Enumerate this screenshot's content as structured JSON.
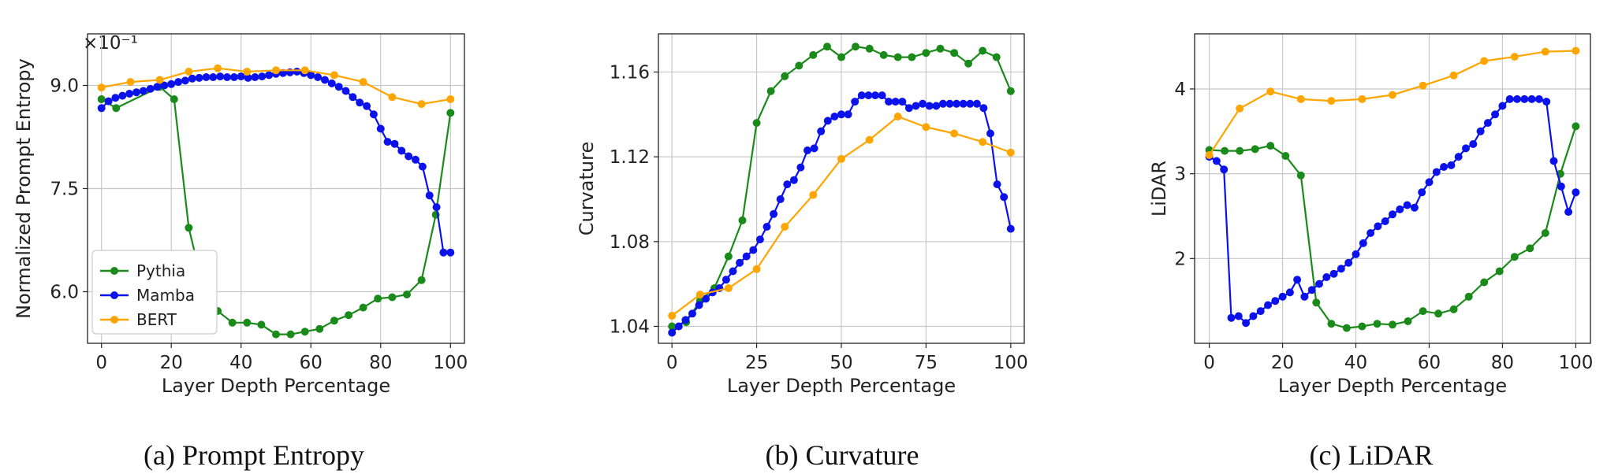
{
  "colors": {
    "Pythia": "#1a8a1a",
    "Mamba": "#0b12ea",
    "BERT": "#ffa500"
  },
  "chart_data": [
    {
      "type": "line",
      "caption": "(a) Prompt Entropy",
      "xlabel": "Layer Depth Percentage",
      "ylabel": "Normalized Prompt Entropy",
      "offset_text": "×10⁻¹",
      "xlim": [
        -4,
        104
      ],
      "ylim": [
        5.25,
        9.75
      ],
      "xticks": [
        0,
        20,
        40,
        60,
        80,
        100
      ],
      "xtick_labels": [
        "0",
        "20",
        "40",
        "60",
        "80",
        "100"
      ],
      "yticks": [
        6.0,
        7.5,
        9.0
      ],
      "ytick_labels": [
        "6.0",
        "7.5",
        "9.0"
      ],
      "legend": "lower-left",
      "series": [
        {
          "name": "Pythia",
          "x": [
            0,
            4.2,
            16.7,
            20.8,
            25,
            29.2,
            33.3,
            37.5,
            41.7,
            45.8,
            50,
            54.2,
            58.3,
            62.5,
            66.7,
            70.8,
            75,
            79.2,
            83.3,
            87.5,
            91.7,
            95.8,
            100
          ],
          "y": [
            8.8,
            8.67,
            8.98,
            8.8,
            6.93,
            6.05,
            5.72,
            5.55,
            5.55,
            5.52,
            5.38,
            5.38,
            5.42,
            5.46,
            5.58,
            5.66,
            5.77,
            5.9,
            5.92,
            5.96,
            6.17,
            7.12,
            8.6
          ]
        },
        {
          "name": "Mamba",
          "x": [
            0,
            2,
            4,
            6,
            8,
            10,
            12,
            14,
            16,
            18,
            20,
            22,
            24,
            26,
            28,
            30,
            32,
            34,
            36,
            38,
            40,
            42,
            44,
            46,
            48,
            50,
            52,
            54,
            56,
            58,
            60,
            62,
            64,
            66,
            68,
            70,
            72,
            74,
            76,
            78,
            80,
            82,
            84,
            86,
            88,
            90,
            92,
            94,
            96,
            98,
            100
          ],
          "y": [
            8.67,
            8.77,
            8.82,
            8.85,
            8.88,
            8.9,
            8.92,
            8.95,
            8.98,
            9.0,
            9.02,
            9.05,
            9.07,
            9.1,
            9.11,
            9.12,
            9.12,
            9.13,
            9.12,
            9.12,
            9.13,
            9.11,
            9.12,
            9.13,
            9.15,
            9.17,
            9.18,
            9.19,
            9.2,
            9.18,
            9.15,
            9.12,
            9.08,
            9.03,
            8.98,
            8.92,
            8.83,
            8.75,
            8.7,
            8.58,
            8.37,
            8.18,
            8.15,
            8.05,
            7.97,
            7.92,
            7.82,
            7.4,
            7.23,
            6.57,
            6.57
          ]
        },
        {
          "name": "BERT",
          "x": [
            0,
            8.3,
            16.7,
            25,
            33.3,
            41.7,
            50,
            58.3,
            66.7,
            75,
            83.3,
            91.7,
            100
          ],
          "y": [
            8.97,
            9.05,
            9.08,
            9.2,
            9.25,
            9.2,
            9.22,
            9.22,
            9.15,
            9.05,
            8.83,
            8.73,
            8.8
          ]
        }
      ]
    },
    {
      "type": "line",
      "caption": "(b) Curvature",
      "xlabel": "Layer Depth Percentage",
      "ylabel": "Curvature",
      "xlim": [
        -4,
        104
      ],
      "ylim": [
        1.032,
        1.178
      ],
      "xticks": [
        0,
        25,
        50,
        75,
        100
      ],
      "xtick_labels": [
        "0",
        "25",
        "50",
        "75",
        "100"
      ],
      "yticks": [
        1.04,
        1.08,
        1.12,
        1.16
      ],
      "ytick_labels": [
        "1.04",
        "1.08",
        "1.12",
        "1.16"
      ],
      "series": [
        {
          "name": "Pythia",
          "x": [
            0,
            4.2,
            8.3,
            12.5,
            16.7,
            20.8,
            25,
            29.2,
            33.3,
            37.5,
            41.7,
            45.8,
            50,
            54.2,
            58.3,
            62.5,
            66.7,
            70.8,
            75,
            79.2,
            83.3,
            87.5,
            91.7,
            95.8,
            100
          ],
          "y": [
            1.04,
            1.042,
            1.052,
            1.058,
            1.073,
            1.09,
            1.136,
            1.151,
            1.158,
            1.163,
            1.168,
            1.172,
            1.167,
            1.172,
            1.171,
            1.168,
            1.167,
            1.167,
            1.169,
            1.171,
            1.169,
            1.164,
            1.17,
            1.167,
            1.151
          ]
        },
        {
          "name": "Mamba",
          "x": [
            0,
            2,
            4,
            6,
            8,
            10,
            12,
            14,
            16,
            18,
            20,
            22,
            24,
            26,
            28,
            30,
            32,
            34,
            36,
            38,
            40,
            42,
            44,
            46,
            48,
            50,
            52,
            54,
            56,
            58,
            60,
            62,
            64,
            66,
            68,
            70,
            72,
            74,
            76,
            78,
            80,
            82,
            84,
            86,
            88,
            90,
            92,
            94,
            96,
            98,
            100
          ],
          "y": [
            1.037,
            1.04,
            1.043,
            1.046,
            1.05,
            1.053,
            1.056,
            1.058,
            1.062,
            1.066,
            1.07,
            1.073,
            1.076,
            1.081,
            1.087,
            1.093,
            1.1,
            1.107,
            1.109,
            1.115,
            1.123,
            1.124,
            1.132,
            1.137,
            1.139,
            1.14,
            1.14,
            1.146,
            1.149,
            1.149,
            1.149,
            1.149,
            1.146,
            1.146,
            1.146,
            1.143,
            1.144,
            1.145,
            1.144,
            1.144,
            1.145,
            1.145,
            1.145,
            1.145,
            1.145,
            1.145,
            1.143,
            1.131,
            1.107,
            1.101,
            1.086
          ]
        },
        {
          "name": "BERT",
          "x": [
            0,
            8.3,
            16.7,
            25,
            33.3,
            41.7,
            50,
            58.3,
            66.7,
            75,
            83.3,
            91.7,
            100
          ],
          "y": [
            1.045,
            1.055,
            1.058,
            1.067,
            1.087,
            1.102,
            1.119,
            1.128,
            1.139,
            1.134,
            1.131,
            1.127,
            1.122
          ]
        }
      ]
    },
    {
      "type": "line",
      "caption": "(c) LiDAR",
      "xlabel": "Layer Depth Percentage",
      "ylabel": "LiDAR",
      "xlim": [
        -4,
        104
      ],
      "ylim": [
        1.0,
        4.65
      ],
      "xticks": [
        0,
        20,
        40,
        60,
        80,
        100
      ],
      "xtick_labels": [
        "0",
        "20",
        "40",
        "60",
        "80",
        "100"
      ],
      "yticks": [
        2,
        3,
        4
      ],
      "ytick_labels": [
        "2",
        "3",
        "4"
      ],
      "series": [
        {
          "name": "Pythia",
          "x": [
            0,
            4.2,
            8.3,
            12.5,
            16.7,
            20.8,
            25,
            29.2,
            33.3,
            37.5,
            41.7,
            45.8,
            50,
            54.2,
            58.3,
            62.5,
            66.7,
            70.8,
            75,
            79.2,
            83.3,
            87.5,
            91.7,
            95.8,
            100
          ],
          "y": [
            3.28,
            3.27,
            3.27,
            3.29,
            3.33,
            3.21,
            2.98,
            1.48,
            1.23,
            1.18,
            1.2,
            1.23,
            1.22,
            1.26,
            1.38,
            1.35,
            1.4,
            1.55,
            1.72,
            1.85,
            2.02,
            2.12,
            2.3,
            3.0,
            3.56
          ]
        },
        {
          "name": "Mamba",
          "x": [
            0,
            2,
            4,
            6,
            8,
            10,
            12,
            14,
            16,
            18,
            20,
            22,
            24,
            26,
            28,
            30,
            32,
            34,
            36,
            38,
            40,
            42,
            44,
            46,
            48,
            50,
            52,
            54,
            56,
            58,
            60,
            62,
            64,
            66,
            68,
            70,
            72,
            74,
            76,
            78,
            80,
            82,
            84,
            86,
            88,
            90,
            92,
            94,
            96,
            98,
            100
          ],
          "y": [
            3.2,
            3.15,
            3.05,
            1.3,
            1.32,
            1.24,
            1.32,
            1.38,
            1.45,
            1.5,
            1.55,
            1.6,
            1.75,
            1.55,
            1.63,
            1.7,
            1.78,
            1.82,
            1.88,
            1.95,
            2.05,
            2.18,
            2.3,
            2.38,
            2.44,
            2.52,
            2.58,
            2.63,
            2.6,
            2.78,
            2.9,
            3.02,
            3.08,
            3.1,
            3.2,
            3.3,
            3.35,
            3.5,
            3.6,
            3.7,
            3.8,
            3.88,
            3.88,
            3.88,
            3.88,
            3.88,
            3.85,
            3.15,
            2.85,
            2.55,
            2.78
          ]
        },
        {
          "name": "BERT",
          "x": [
            0,
            8.3,
            16.7,
            25,
            33.3,
            41.7,
            50,
            58.3,
            66.7,
            75,
            83.3,
            91.7,
            100
          ],
          "y": [
            3.22,
            3.77,
            3.97,
            3.88,
            3.86,
            3.88,
            3.93,
            4.04,
            4.16,
            4.33,
            4.38,
            4.44,
            4.45
          ]
        }
      ]
    }
  ]
}
